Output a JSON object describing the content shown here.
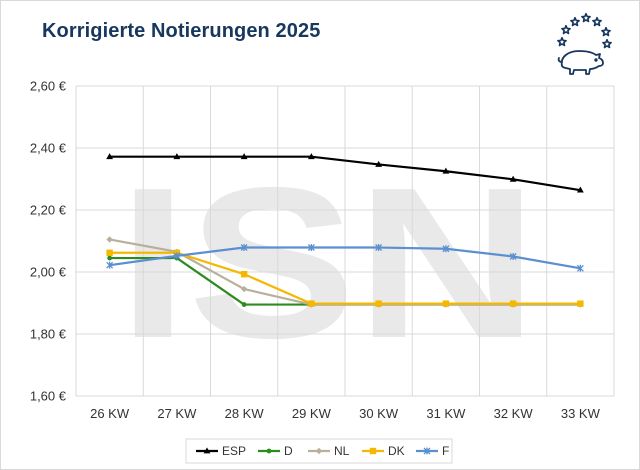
{
  "title": "Korrigierte Notierungen 2025",
  "logo": {
    "icon": "eu-stars-pig-logo",
    "color": "#17375e"
  },
  "watermark": {
    "text": "ISN",
    "color": "#e9e9e9"
  },
  "chart_data": {
    "type": "line",
    "title": "Korrigierte Notierungen 2025",
    "categories": [
      "26 KW",
      "27 KW",
      "28 KW",
      "29 KW",
      "30 KW",
      "31 KW",
      "32 KW",
      "33 KW"
    ],
    "ylim": [
      1.6,
      2.6
    ],
    "y_ticks": [
      1.6,
      1.8,
      2.0,
      2.2,
      2.4,
      2.6
    ],
    "y_tick_labels": [
      "1,60 €",
      "1,80 €",
      "2,00 €",
      "2,20 €",
      "2,40 €",
      "2,60 €"
    ],
    "grid": true,
    "legend_position": "bottom",
    "series": [
      {
        "name": "ESP",
        "color": "#000000",
        "marker": "triangle",
        "values": [
          2.372,
          2.372,
          2.372,
          2.372,
          2.347,
          2.325,
          2.299,
          2.264
        ]
      },
      {
        "name": "D",
        "color": "#2e8b1f",
        "marker": "circle",
        "values": [
          2.045,
          2.045,
          1.895,
          1.895,
          1.895,
          1.895,
          1.895,
          1.895
        ]
      },
      {
        "name": "NL",
        "color": "#b8b09a",
        "marker": "diamond",
        "values": [
          2.105,
          2.065,
          1.945,
          1.895,
          1.895,
          1.895,
          1.895,
          1.895
        ]
      },
      {
        "name": "DK",
        "color": "#f5b800",
        "marker": "square",
        "values": [
          2.062,
          2.062,
          1.993,
          1.898,
          1.898,
          1.898,
          1.898,
          1.898
        ]
      },
      {
        "name": "F",
        "color": "#5b8fd0",
        "marker": "star",
        "values": [
          2.022,
          2.052,
          2.079,
          2.079,
          2.079,
          2.075,
          2.05,
          2.012
        ]
      }
    ]
  }
}
